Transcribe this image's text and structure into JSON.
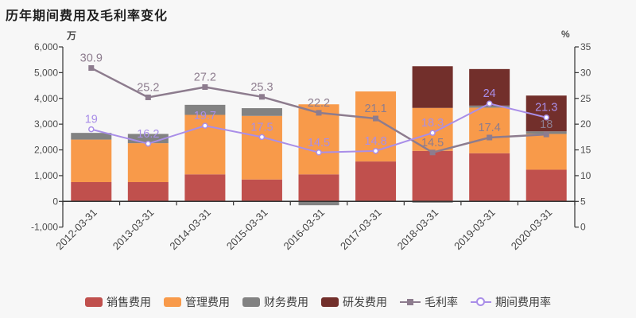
{
  "chart_data": {
    "type": "bar+line",
    "title": "历年期间费用及毛利率变化",
    "legend_position": "bottom",
    "grid": false,
    "left_axis": {
      "unit": "万",
      "min": -1000,
      "max": 6000,
      "tick_values": [
        6000,
        5000,
        4000,
        3000,
        2000,
        1000,
        0,
        -1000
      ],
      "tick_labels": [
        "6,000",
        "5,000",
        "4,000",
        "3,000",
        "2,000",
        "1,000",
        "0",
        "-1,000"
      ]
    },
    "right_axis": {
      "unit": "%",
      "min": 0,
      "max": 35,
      "tick_values": [
        35,
        30,
        25,
        20,
        15,
        10,
        5,
        0
      ],
      "tick_labels": [
        "35",
        "30",
        "25",
        "20",
        "15",
        "10",
        "5",
        "0"
      ]
    },
    "categories": [
      "2012-03-31",
      "2013-03-31",
      "2014-03-31",
      "2015-03-31",
      "2016-03-31",
      "2017-03-31",
      "2018-03-31",
      "2019-03-31",
      "2020-03-31"
    ],
    "bar_series": [
      {
        "key": "sales-expense",
        "name": "销售费用",
        "color": "#c0504d",
        "values": [
          750,
          750,
          1050,
          850,
          1050,
          1550,
          1960,
          1870,
          1230
        ]
      },
      {
        "key": "admin-expense",
        "name": "管理费用",
        "color": "#f89a4a",
        "values": [
          1650,
          1510,
          2310,
          2470,
          2720,
          2720,
          1670,
          1770,
          1390
        ]
      },
      {
        "key": "finance-expense",
        "name": "财务费用",
        "color": "#828282",
        "values": [
          260,
          360,
          390,
          300,
          -150,
          0,
          -50,
          80,
          100
        ]
      },
      {
        "key": "rnd-expense",
        "name": "研发费用",
        "color": "#722f2b",
        "values": [
          0,
          0,
          0,
          0,
          0,
          0,
          1620,
          1420,
          1390
        ]
      }
    ],
    "line_series": [
      {
        "key": "gross-margin",
        "name": "毛利率",
        "color": "#8d7c8e",
        "marker": "square",
        "line_width": 2.5,
        "values": [
          30.9,
          25.2,
          27.2,
          25.3,
          22.2,
          21.1,
          14.5,
          17.4,
          18
        ]
      },
      {
        "key": "expense-ratio",
        "name": "期间费用率",
        "color": "#a98ee8",
        "marker": "circle-hollow",
        "line_width": 2,
        "values": [
          19,
          16.2,
          19.7,
          17.5,
          14.5,
          14.8,
          18.3,
          24,
          21.3
        ]
      }
    ],
    "colors": {
      "background": "#f7f7f7",
      "axis_line": "#333333",
      "axis_text": "#4d4d4d",
      "title_text": "#1f1f1f"
    }
  }
}
